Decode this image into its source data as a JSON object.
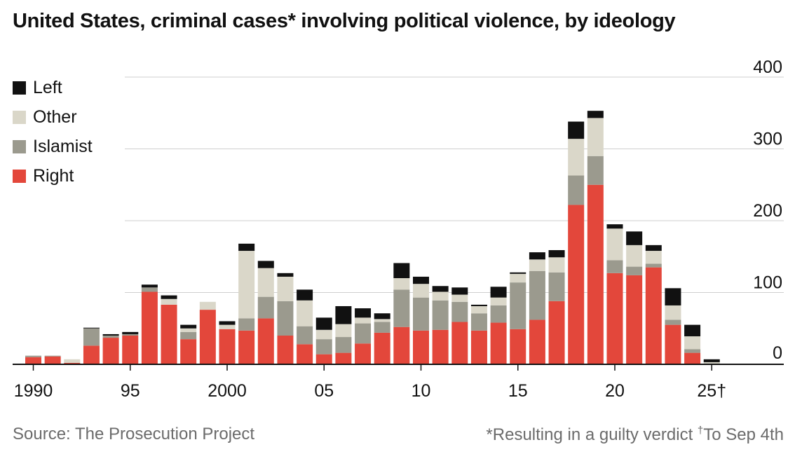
{
  "chart_data": {
    "type": "bar",
    "stacked": true,
    "title": "United States, criminal cases* involving political violence, by ideology",
    "xlabel": "",
    "ylabel": "",
    "ylim": [
      0,
      400
    ],
    "yticks": [
      0,
      100,
      200,
      300,
      400
    ],
    "grid": true,
    "legend_position": "top-left",
    "categories": [
      "1990",
      "1991",
      "1992",
      "1993",
      "1994",
      "1995",
      "1996",
      "1997",
      "1998",
      "1999",
      "2000",
      "2001",
      "2002",
      "2003",
      "2004",
      "2005",
      "2006",
      "2007",
      "2008",
      "2009",
      "2010",
      "2011",
      "2012",
      "2013",
      "2014",
      "2015",
      "2016",
      "2017",
      "2018",
      "2019",
      "2020",
      "2021",
      "2022",
      "2023",
      "2024",
      "2025"
    ],
    "xtick_labels": [
      {
        "category": "1990",
        "label": "1990"
      },
      {
        "category": "1995",
        "label": "95"
      },
      {
        "category": "2000",
        "label": "2000"
      },
      {
        "category": "2005",
        "label": "05"
      },
      {
        "category": "2010",
        "label": "10"
      },
      {
        "category": "2015",
        "label": "15"
      },
      {
        "category": "2020",
        "label": "20"
      },
      {
        "category": "2025",
        "label": "25†"
      }
    ],
    "series": [
      {
        "name": "Right",
        "color": "#e3473b",
        "values": [
          10,
          11,
          2,
          26,
          37,
          40,
          101,
          83,
          35,
          76,
          49,
          47,
          64,
          40,
          28,
          14,
          16,
          29,
          44,
          52,
          47,
          48,
          59,
          47,
          58,
          49,
          62,
          88,
          222,
          250,
          127,
          124,
          135,
          55,
          16,
          1
        ]
      },
      {
        "name": "Islamist",
        "color": "#9b9a8e",
        "values": [
          2,
          1,
          0,
          24,
          3,
          2,
          6,
          0,
          10,
          0,
          0,
          17,
          30,
          48,
          25,
          21,
          22,
          28,
          15,
          52,
          46,
          41,
          28,
          24,
          24,
          65,
          68,
          40,
          41,
          40,
          18,
          12,
          5,
          7,
          5,
          0
        ]
      },
      {
        "name": "Other",
        "color": "#dad7c9",
        "values": [
          0,
          0,
          5,
          0,
          0,
          0,
          0,
          8,
          5,
          11,
          6,
          94,
          40,
          34,
          36,
          13,
          18,
          8,
          4,
          16,
          19,
          12,
          10,
          10,
          11,
          12,
          16,
          21,
          51,
          53,
          44,
          30,
          18,
          20,
          18,
          2
        ]
      },
      {
        "name": "Left",
        "color": "#111111",
        "values": [
          0,
          0,
          0,
          1,
          2,
          3,
          4,
          5,
          5,
          0,
          5,
          10,
          10,
          5,
          15,
          17,
          25,
          13,
          8,
          21,
          10,
          8,
          10,
          2,
          15,
          2,
          10,
          10,
          24,
          10,
          6,
          19,
          8,
          24,
          16,
          4
        ]
      }
    ],
    "legend_order": [
      "Left",
      "Other",
      "Islamist",
      "Right"
    ]
  },
  "footer": {
    "source": "Source: The Prosecution Project",
    "note": "*Resulting in a guilty verdict",
    "dagger": "†",
    "note2": "To Sep 4th"
  }
}
